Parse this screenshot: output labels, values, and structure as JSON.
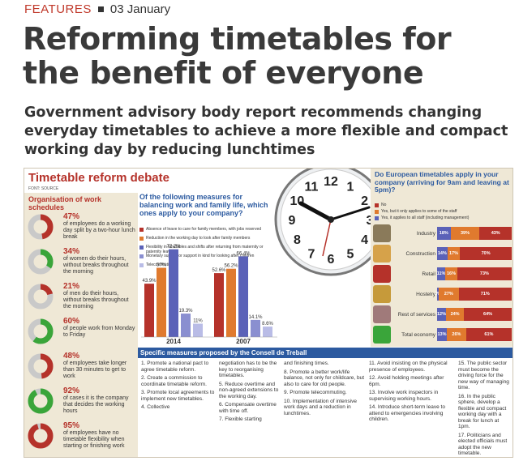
{
  "article": {
    "section": "FEATURES",
    "date": "03 January",
    "headline": "Reforming timetables for the benefit of everyone",
    "standfirst": "Government advisory body report recommends changing everyday timetables to achieve a more flexible and compact working day by reducing lunchtimes"
  },
  "infographic": {
    "title": "Timetable reform debate",
    "font_source": "FONT: SOURCE",
    "organisation": {
      "heading": "Organisation of work schedules",
      "stats": [
        {
          "pct": "47%",
          "desc": "of employees do a working day split by a two-hour lunch break",
          "value": 47,
          "color": "#b5322a"
        },
        {
          "pct": "34%",
          "desc": "of women do their hours, without breaks throughout the morning",
          "value": 34,
          "color": "#3aa53a"
        },
        {
          "pct": "21%",
          "desc": "of men do their hours, without breaks throughout the morning",
          "value": 21,
          "color": "#b5322a"
        },
        {
          "pct": "60%",
          "desc": "of people work from Monday to Friday",
          "value": 60,
          "color": "#3aa53a"
        },
        {
          "pct": "48%",
          "desc": "of employees take longer than 30 minutes to get to work",
          "value": 48,
          "color": "#b5322a"
        },
        {
          "pct": "92%",
          "desc": "of cases it is the company that decides the working hours",
          "value": 92,
          "color": "#3aa53a"
        },
        {
          "pct": "95%",
          "desc": "of employees have no timetable flexibility when starting or finishing work",
          "value": 95,
          "color": "#b5322a"
        }
      ]
    },
    "measures_question": "Of the following measures for balancing work and family life, which ones apply to your company?",
    "measures_legend": [
      {
        "label": "Absence of leave to care for family members, with jobs reserved",
        "color": "#b5322a"
      },
      {
        "label": "Reduction in the working day to look after family members",
        "color": "#e07a2e"
      },
      {
        "label": "Flexibility in timetables and shifts after returning from maternity or paternity leave",
        "color": "#5b62b8"
      },
      {
        "label": "Monetary support or support in kind for looking after children",
        "color": "#8a8fd0"
      },
      {
        "label": "Telecommuting",
        "color": "#b9bce6"
      }
    ],
    "clock_numbers": [
      "12",
      "1",
      "2",
      "3",
      "4",
      "5",
      "6",
      "7",
      "8",
      "9",
      "10",
      "11"
    ],
    "european": {
      "question": "Do European timetables apply in your company (arriving for 9am and leaving at 5pm)?",
      "legend": [
        {
          "label": "No",
          "color": "#b5322a"
        },
        {
          "label": "Yes, but it only applies to some of the staff",
          "color": "#e07a2e"
        },
        {
          "label": "Yes, it applies to all staff (including management)",
          "color": "#5b62b8"
        }
      ],
      "sectors": [
        {
          "name": "Industry",
          "values": [
            18,
            39,
            43
          ],
          "labels": [
            "18%",
            "39%",
            "43%"
          ],
          "icon_color": "#8a7a5a"
        },
        {
          "name": "Construction",
          "values": [
            14,
            17,
            70
          ],
          "labels": [
            "14%",
            "17%",
            "70%"
          ],
          "icon_color": "#d6a24a"
        },
        {
          "name": "Retail",
          "values": [
            11,
            16,
            73
          ],
          "labels": [
            "11%",
            "16%",
            "73%"
          ],
          "icon_color": "#b5322a"
        },
        {
          "name": "Hostelry",
          "values": [
            2,
            27,
            71
          ],
          "labels": [
            "2%",
            "27%",
            "71%"
          ],
          "icon_color": "#c69a3a"
        },
        {
          "name": "Rest of services",
          "values": [
            12,
            24,
            64
          ],
          "labels": [
            "12%",
            "24%",
            "64%"
          ],
          "icon_color": "#a07a7a"
        },
        {
          "name": "Total economy",
          "values": [
            13,
            26,
            61
          ],
          "labels": [
            "13%",
            "26%",
            "61%"
          ],
          "icon_color": "#3aa53a"
        }
      ]
    },
    "specific_heading": "Specific measures proposed by the Consell de Treball",
    "specific_cols": [
      [
        "1. Promote a national pact to agree timetable reform.",
        "2. Create a commission to coordinate timetable reform.",
        "3. Promote local agreements to implement new timetables.",
        "4. Collective"
      ],
      [
        "negotiation has to be the key to reorganising timetables.",
        "5. Reduce overtime and non-agreed extensions to the working day.",
        "6. Compensate overtime with time off.",
        "7. Flexible starting"
      ],
      [
        "and finishing times.",
        "8. Promote a better work/life balance, not only for childcare, but also to care for old people.",
        "9. Promote telecommuting.",
        "10. Implementation of intensive work days and a reduction in lunchtimes."
      ],
      [
        "11. Avoid insisting on the physical presence of employees.",
        "12. Avoid holding meetings after 6pm.",
        "13. Involve work inspectors in supervising working hours.",
        "14. Introduce short-term leave to attend to emergencies involving children."
      ],
      [
        "15. The public sector must become the driving force for the new way of managing time.",
        "16. In the public sphere, develop a flexible and compact working day with a break for lunch at 1pm.",
        "17. Politicians and elected officials must adopt the new timetable."
      ]
    ]
  },
  "chart_data": {
    "type": "bar",
    "categories": [
      "2014",
      "2007"
    ],
    "series": [
      {
        "name": "Absence of leave to care for family members, with jobs reserved",
        "values": [
          43.9,
          52.6
        ],
        "labels": [
          "43.9%",
          "52.6%"
        ],
        "color": "#b5322a"
      },
      {
        "name": "Reduction in the working day to look after family members",
        "values": [
          57,
          56.2
        ],
        "labels": [
          "57%",
          "56.2%"
        ],
        "color": "#e07a2e"
      },
      {
        "name": "Flexibility in timetables and shifts after returning from maternity or paternity leave",
        "values": [
          72.2,
          66.4
        ],
        "labels": [
          "72.2%",
          "66.4%"
        ],
        "color": "#5b62b8"
      },
      {
        "name": "Monetary support or support in kind for looking after children",
        "values": [
          19.3,
          14.1
        ],
        "labels": [
          "19.3%",
          "14.1%"
        ],
        "color": "#8a8fd0"
      },
      {
        "name": "Telecommuting",
        "values": [
          11,
          8.6
        ],
        "labels": [
          "11%",
          "8.6%"
        ],
        "color": "#b9bce6"
      }
    ],
    "ylim": [
      0,
      80
    ]
  }
}
